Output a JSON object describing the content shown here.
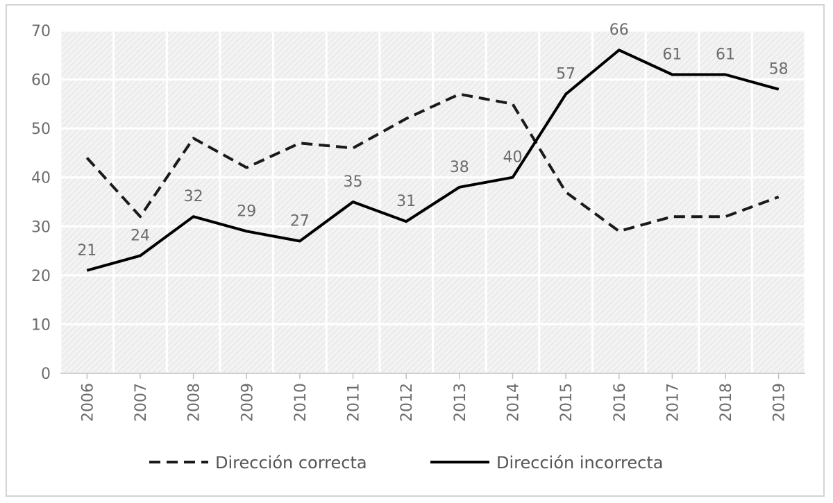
{
  "chart_data": {
    "type": "line",
    "title": "",
    "xlabel": "",
    "ylabel": "",
    "ylim": [
      0,
      70
    ],
    "yticks": [
      0,
      10,
      20,
      30,
      40,
      50,
      60,
      70
    ],
    "grid": true,
    "legend_position": "bottom",
    "categories": [
      "2006",
      "2007",
      "2008",
      "2009",
      "2010",
      "2011",
      "2012",
      "2013",
      "2014",
      "2015",
      "2016",
      "2017",
      "2018",
      "2019"
    ],
    "series": [
      {
        "name": "Dirección correcta",
        "style": "dashed",
        "color": "#1a1a1a",
        "values": [
          44,
          32,
          48,
          42,
          47,
          46,
          52,
          57,
          55,
          37,
          29,
          32,
          32,
          36
        ],
        "show_labels": false
      },
      {
        "name": "Dirección incorrecta",
        "style": "solid",
        "color": "#000000",
        "values": [
          21,
          24,
          32,
          29,
          27,
          35,
          31,
          38,
          40,
          57,
          66,
          61,
          61,
          58
        ],
        "show_labels": true
      }
    ]
  },
  "colors": {
    "plot_background": "#efefef",
    "gridline": "#ffffff",
    "text": "#6b6b6b"
  }
}
